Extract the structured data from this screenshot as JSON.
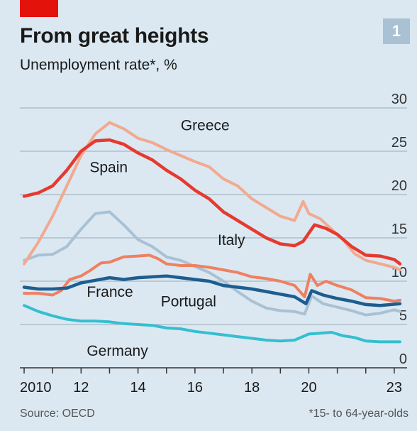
{
  "header": {
    "title": "From great heights",
    "subtitle": "Unemployment rate*, %",
    "badge": "1"
  },
  "footer": {
    "source": "Source: OECD",
    "note": "*15- to 64-year-olds"
  },
  "colors": {
    "Greece": "#f2a98e",
    "Spain": "#e63a2e",
    "Italy": "#ef8060",
    "France": "#1d5d90",
    "Portugal": "#a9c1d3",
    "Germany": "#34bfd0",
    "grid": "#9aaab6",
    "axis": "#333333"
  },
  "chart_data": {
    "type": "line",
    "title": "From great heights",
    "subtitle": "Unemployment rate*, %",
    "xlabel": "",
    "ylabel": "",
    "xlim": [
      2009.85,
      2023.45
    ],
    "ylim": [
      0,
      30
    ],
    "y_ticks": [
      0,
      5,
      10,
      15,
      20,
      25,
      30
    ],
    "x_ticks": [
      {
        "value": 2010,
        "label": "2010"
      },
      {
        "value": 2012,
        "label": "12"
      },
      {
        "value": 2014,
        "label": "14"
      },
      {
        "value": 2016,
        "label": "16"
      },
      {
        "value": 2018,
        "label": "18"
      },
      {
        "value": 2020,
        "label": "20"
      },
      {
        "value": 2023,
        "label": "23"
      }
    ],
    "grid": true,
    "series": [
      {
        "name": "Greece",
        "points": [
          [
            2010,
            12
          ],
          [
            2010.5,
            14.5
          ],
          [
            2011,
            17.5
          ],
          [
            2011.5,
            21
          ],
          [
            2012,
            24.5
          ],
          [
            2012.5,
            27
          ],
          [
            2013,
            28.3
          ],
          [
            2013.5,
            27.6
          ],
          [
            2014,
            26.5
          ],
          [
            2014.5,
            26
          ],
          [
            2015,
            25.2
          ],
          [
            2015.5,
            24.5
          ],
          [
            2016,
            23.8
          ],
          [
            2016.5,
            23.2
          ],
          [
            2017,
            21.8
          ],
          [
            2017.5,
            21
          ],
          [
            2018,
            19.5
          ],
          [
            2018.5,
            18.5
          ],
          [
            2019,
            17.5
          ],
          [
            2019.5,
            17
          ],
          [
            2019.8,
            19.2
          ],
          [
            2020,
            17.8
          ],
          [
            2020.4,
            17.2
          ],
          [
            2020.8,
            16
          ],
          [
            2021.2,
            14.8
          ],
          [
            2021.6,
            13.2
          ],
          [
            2022,
            12.4
          ],
          [
            2022.5,
            12
          ],
          [
            2023,
            11.6
          ],
          [
            2023.2,
            11.3
          ]
        ]
      },
      {
        "name": "Spain",
        "points": [
          [
            2010,
            19.8
          ],
          [
            2010.5,
            20.2
          ],
          [
            2011,
            21
          ],
          [
            2011.5,
            22.8
          ],
          [
            2012,
            25
          ],
          [
            2012.5,
            26.2
          ],
          [
            2013,
            26.3
          ],
          [
            2013.5,
            25.8
          ],
          [
            2014,
            24.8
          ],
          [
            2014.5,
            24
          ],
          [
            2015,
            22.8
          ],
          [
            2015.5,
            21.8
          ],
          [
            2016,
            20.5
          ],
          [
            2016.5,
            19.5
          ],
          [
            2017,
            18
          ],
          [
            2017.5,
            17
          ],
          [
            2018,
            16
          ],
          [
            2018.5,
            15
          ],
          [
            2019,
            14.3
          ],
          [
            2019.5,
            14.1
          ],
          [
            2019.8,
            14.6
          ],
          [
            2020.2,
            16.5
          ],
          [
            2020.6,
            16.1
          ],
          [
            2021,
            15.4
          ],
          [
            2021.5,
            14
          ],
          [
            2022,
            13
          ],
          [
            2022.5,
            12.9
          ],
          [
            2023,
            12.5
          ],
          [
            2023.2,
            12
          ]
        ]
      },
      {
        "name": "Italy",
        "points": [
          [
            2010,
            8.6
          ],
          [
            2010.5,
            8.6
          ],
          [
            2011,
            8.4
          ],
          [
            2011.3,
            8.9
          ],
          [
            2011.6,
            10.2
          ],
          [
            2012,
            10.6
          ],
          [
            2012.3,
            11.2
          ],
          [
            2012.7,
            12.1
          ],
          [
            2013,
            12.2
          ],
          [
            2013.5,
            12.8
          ],
          [
            2014,
            12.9
          ],
          [
            2014.4,
            13
          ],
          [
            2014.7,
            12.6
          ],
          [
            2015,
            12
          ],
          [
            2015.5,
            11.8
          ],
          [
            2016,
            11.8
          ],
          [
            2016.5,
            11.6
          ],
          [
            2017,
            11.3
          ],
          [
            2017.5,
            11
          ],
          [
            2018,
            10.5
          ],
          [
            2018.5,
            10.3
          ],
          [
            2019,
            10
          ],
          [
            2019.5,
            9.5
          ],
          [
            2019.85,
            8.2
          ],
          [
            2020.05,
            10.8
          ],
          [
            2020.3,
            9.5
          ],
          [
            2020.6,
            10
          ],
          [
            2021,
            9.5
          ],
          [
            2021.5,
            9
          ],
          [
            2022,
            8.1
          ],
          [
            2022.5,
            8
          ],
          [
            2023,
            7.7
          ],
          [
            2023.2,
            7.8
          ]
        ]
      },
      {
        "name": "France",
        "points": [
          [
            2010,
            9.3
          ],
          [
            2010.5,
            9.1
          ],
          [
            2011,
            9.1
          ],
          [
            2011.5,
            9.2
          ],
          [
            2012,
            9.8
          ],
          [
            2012.5,
            10.1
          ],
          [
            2013,
            10.4
          ],
          [
            2013.5,
            10.2
          ],
          [
            2014,
            10.4
          ],
          [
            2014.5,
            10.5
          ],
          [
            2015,
            10.6
          ],
          [
            2015.5,
            10.4
          ],
          [
            2016,
            10.2
          ],
          [
            2016.5,
            10
          ],
          [
            2017,
            9.5
          ],
          [
            2017.5,
            9.3
          ],
          [
            2018,
            9.1
          ],
          [
            2018.5,
            8.8
          ],
          [
            2019,
            8.5
          ],
          [
            2019.5,
            8.2
          ],
          [
            2019.9,
            7.4
          ],
          [
            2020.1,
            8.9
          ],
          [
            2020.5,
            8.4
          ],
          [
            2021,
            8
          ],
          [
            2021.5,
            7.7
          ],
          [
            2022,
            7.3
          ],
          [
            2022.5,
            7.2
          ],
          [
            2023.2,
            7.4
          ]
        ]
      },
      {
        "name": "Portugal",
        "points": [
          [
            2010,
            12.4
          ],
          [
            2010.5,
            13
          ],
          [
            2011,
            13.1
          ],
          [
            2011.5,
            14
          ],
          [
            2012,
            16
          ],
          [
            2012.5,
            17.8
          ],
          [
            2013,
            18
          ],
          [
            2013.5,
            16.5
          ],
          [
            2014,
            14.8
          ],
          [
            2014.5,
            14
          ],
          [
            2015,
            12.8
          ],
          [
            2015.5,
            12.4
          ],
          [
            2016,
            11.7
          ],
          [
            2016.5,
            11
          ],
          [
            2017,
            10
          ],
          [
            2017.5,
            8.8
          ],
          [
            2018,
            7.7
          ],
          [
            2018.5,
            6.9
          ],
          [
            2019,
            6.6
          ],
          [
            2019.5,
            6.5
          ],
          [
            2019.85,
            6.2
          ],
          [
            2020.1,
            8.3
          ],
          [
            2020.5,
            7.4
          ],
          [
            2021,
            7
          ],
          [
            2021.5,
            6.6
          ],
          [
            2022,
            6.1
          ],
          [
            2022.5,
            6.3
          ],
          [
            2023,
            6.7
          ],
          [
            2023.2,
            6.5
          ]
        ]
      },
      {
        "name": "Germany",
        "points": [
          [
            2010,
            7.2
          ],
          [
            2010.5,
            6.5
          ],
          [
            2011,
            6
          ],
          [
            2011.5,
            5.6
          ],
          [
            2012,
            5.4
          ],
          [
            2012.5,
            5.4
          ],
          [
            2013,
            5.3
          ],
          [
            2013.5,
            5.1
          ],
          [
            2014,
            5
          ],
          [
            2014.5,
            4.9
          ],
          [
            2015,
            4.6
          ],
          [
            2015.5,
            4.5
          ],
          [
            2016,
            4.2
          ],
          [
            2016.5,
            4
          ],
          [
            2017,
            3.8
          ],
          [
            2017.5,
            3.6
          ],
          [
            2018,
            3.4
          ],
          [
            2018.5,
            3.2
          ],
          [
            2019,
            3.1
          ],
          [
            2019.5,
            3.2
          ],
          [
            2020,
            3.9
          ],
          [
            2020.4,
            4
          ],
          [
            2020.8,
            4.1
          ],
          [
            2021.2,
            3.7
          ],
          [
            2021.6,
            3.5
          ],
          [
            2022,
            3.1
          ],
          [
            2022.5,
            3
          ],
          [
            2023.2,
            3
          ]
        ]
      }
    ],
    "labels": [
      {
        "series": "Greece",
        "text": "Greece",
        "at": [
          2015.5,
          27.4
        ]
      },
      {
        "series": "Spain",
        "text": "Spain",
        "at": [
          2012.3,
          22.6
        ]
      },
      {
        "series": "Italy",
        "text": "Italy",
        "at": [
          2016.8,
          14.2
        ]
      },
      {
        "series": "France",
        "text": "France",
        "at": [
          2012.2,
          8.2
        ]
      },
      {
        "series": "Portugal",
        "text": "Portugal",
        "at": [
          2014.8,
          7.1
        ]
      },
      {
        "series": "Germany",
        "text": "Germany",
        "at": [
          2012.2,
          1.4
        ]
      }
    ]
  }
}
